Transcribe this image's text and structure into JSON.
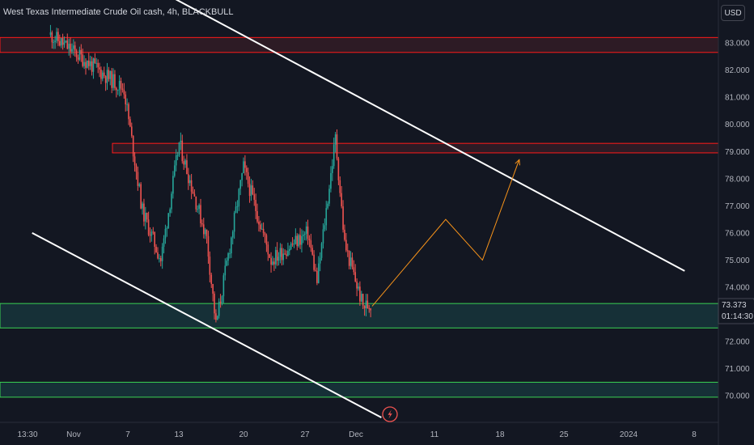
{
  "title": "West Texas Intermediate Crude Oil cash, 4h, BLACKBULL",
  "currency_button": "USD",
  "last_price": "73.373",
  "countdown": "01:14:30",
  "colors": {
    "background": "#131722",
    "up": "#26a69a",
    "down": "#ef5350",
    "resistance": "#ff1a1a",
    "support": "#39d353",
    "trendline": "#ffffff",
    "projection": "#f7931a"
  },
  "icons": [
    "lightning-icon"
  ],
  "chart_data": {
    "type": "candlestick",
    "title": "West Texas Intermediate Crude Oil cash, 4h, BLACKBULL",
    "ylim": [
      69.5,
      84.5
    ],
    "y_ticks": [
      "83.000",
      "82.000",
      "81.000",
      "80.000",
      "79.000",
      "78.000",
      "77.000",
      "76.000",
      "75.000",
      "74.000",
      "72.000",
      "71.000",
      "70.000"
    ],
    "x_ticks": [
      "13:30",
      "Nov",
      "7",
      "13",
      "20",
      "27",
      "Dec",
      "11",
      "18",
      "25",
      "2024",
      "8"
    ],
    "grid": false,
    "key_points": [
      {
        "date": "Oct 30",
        "price": 83.3
      },
      {
        "date": "Nov 7",
        "price": 81.3
      },
      {
        "date": "Nov 9",
        "price": 76.8
      },
      {
        "date": "Nov 11",
        "price": 75.0
      },
      {
        "date": "Nov 13",
        "price": 79.3
      },
      {
        "date": "Nov 16",
        "price": 75.8
      },
      {
        "date": "Nov 17",
        "price": 72.6
      },
      {
        "date": "Nov 20",
        "price": 78.4
      },
      {
        "date": "Nov 23",
        "price": 75.0
      },
      {
        "date": "Nov 27",
        "price": 76.0
      },
      {
        "date": "Nov 28",
        "price": 74.2
      },
      {
        "date": "Nov 30",
        "price": 79.5
      },
      {
        "date": "Dec 1",
        "price": 75.6
      },
      {
        "date": "Dec 3",
        "price": 73.3
      },
      {
        "date": "Dec 4",
        "price": 73.373
      }
    ],
    "zones": [
      {
        "kind": "resistance",
        "from": 82.65,
        "to": 83.2
      },
      {
        "kind": "resistance",
        "from": 78.95,
        "to": 79.3
      },
      {
        "kind": "support",
        "from": 72.5,
        "to": 73.4
      },
      {
        "kind": "support",
        "from": 69.95,
        "to": 70.5
      }
    ],
    "trendlines": [
      {
        "name": "upper channel",
        "from": {
          "date": "Nov 11",
          "price": 84.9
        },
        "to": {
          "date": "Jan 7",
          "price": 74.6
        }
      },
      {
        "name": "lower channel",
        "from": {
          "date": "Oct 28",
          "price": 76.0
        },
        "to": {
          "date": "Dec 5",
          "price": 69.2
        }
      }
    ],
    "projection": [
      {
        "date": "Dec 4",
        "price": 73.3
      },
      {
        "date": "Dec 12",
        "price": 76.5
      },
      {
        "date": "Dec 16",
        "price": 75.0
      },
      {
        "date": "Dec 20",
        "price": 78.7
      }
    ]
  }
}
